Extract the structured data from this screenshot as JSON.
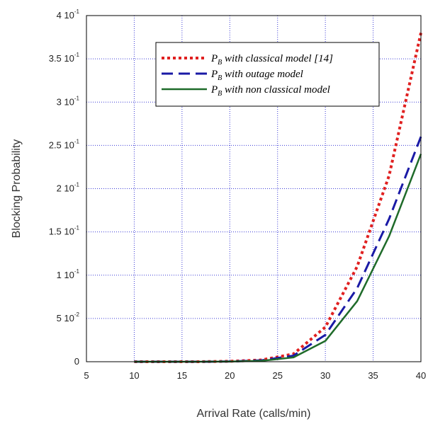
{
  "chart_data": {
    "type": "line",
    "xlabel": "Arrival Rate (calls/min)",
    "ylabel": "Blocking Probability",
    "xlim": [
      5,
      40
    ],
    "ylim": [
      0,
      0.4
    ],
    "x_ticks": [
      "5",
      "10",
      "15",
      "20",
      "25",
      "30",
      "35",
      "40"
    ],
    "y_ticks": [
      {
        "value": 0,
        "mantissa": "0",
        "exp": ""
      },
      {
        "value": 0.05,
        "mantissa": "5 10",
        "exp": "-2"
      },
      {
        "value": 0.1,
        "mantissa": "1 10",
        "exp": "-1"
      },
      {
        "value": 0.15,
        "mantissa": "1.5 10",
        "exp": "-1"
      },
      {
        "value": 0.2,
        "mantissa": "2 10",
        "exp": "-1"
      },
      {
        "value": 0.25,
        "mantissa": "2.5 10",
        "exp": "-1"
      },
      {
        "value": 0.3,
        "mantissa": "3 10",
        "exp": "-1"
      },
      {
        "value": 0.35,
        "mantissa": "3.5 10",
        "exp": "-1"
      },
      {
        "value": 0.4,
        "mantissa": "4 10",
        "exp": "-1"
      }
    ],
    "grid": true,
    "legend_position": "top-right",
    "series": [
      {
        "name_main": "P",
        "name_sub": "B",
        "name_rest": " with classical model [14]",
        "color": "#e02020",
        "dash": "dotted",
        "x": [
          10,
          13.33,
          16.67,
          20,
          23.33,
          26.67,
          30,
          33.33,
          36.67,
          40
        ],
        "y": [
          0.0,
          0.0,
          0.0,
          0.0005,
          0.002,
          0.009,
          0.04,
          0.11,
          0.215,
          0.38
        ]
      },
      {
        "name_main": "P",
        "name_sub": "B",
        "name_rest": " with outage model",
        "color": "#1a1aa6",
        "dash": "dashed",
        "x": [
          10,
          13.33,
          16.67,
          20,
          23.33,
          26.67,
          30,
          33.33,
          36.67,
          40
        ],
        "y": [
          0.0,
          0.0,
          0.0,
          0.0003,
          0.0015,
          0.007,
          0.031,
          0.085,
          0.165,
          0.26
        ]
      },
      {
        "name_main": "P",
        "name_sub": "B",
        "name_rest": " with non classical model",
        "color": "#1f6b2a",
        "dash": "solid",
        "x": [
          10,
          13.33,
          16.67,
          20,
          23.33,
          26.67,
          30,
          33.33,
          36.67,
          40
        ],
        "y": [
          0.0,
          0.0,
          0.0,
          0.0002,
          0.001,
          0.005,
          0.024,
          0.07,
          0.145,
          0.24
        ]
      }
    ]
  }
}
